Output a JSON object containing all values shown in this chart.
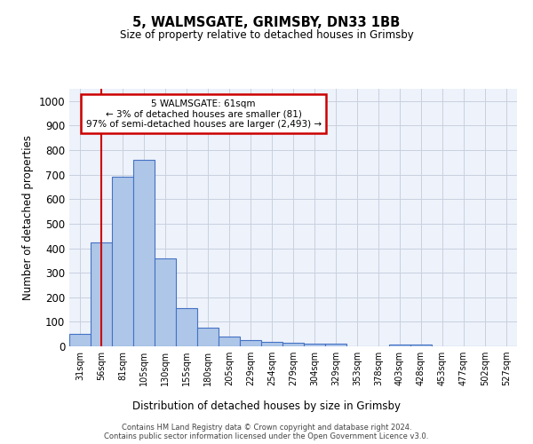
{
  "title": "5, WALMSGATE, GRIMSBY, DN33 1BB",
  "subtitle": "Size of property relative to detached houses in Grimsby",
  "xlabel": "Distribution of detached houses by size in Grimsby",
  "ylabel": "Number of detached properties",
  "categories": [
    "31sqm",
    "56sqm",
    "81sqm",
    "105sqm",
    "130sqm",
    "155sqm",
    "180sqm",
    "205sqm",
    "229sqm",
    "254sqm",
    "279sqm",
    "304sqm",
    "329sqm",
    "353sqm",
    "378sqm",
    "403sqm",
    "428sqm",
    "453sqm",
    "477sqm",
    "502sqm",
    "527sqm"
  ],
  "values": [
    50,
    425,
    690,
    760,
    360,
    155,
    75,
    40,
    27,
    18,
    15,
    10,
    10,
    0,
    0,
    8,
    8,
    0,
    0,
    0,
    0
  ],
  "bar_color": "#aec6e8",
  "bar_edge_color": "#4472c4",
  "vline_x": 1,
  "vline_color": "#cc0000",
  "annotation_text": "5 WALMSGATE: 61sqm\n← 3% of detached houses are smaller (81)\n97% of semi-detached houses are larger (2,493) →",
  "annotation_edge_color": "#cc0000",
  "ylim": [
    0,
    1050
  ],
  "yticks": [
    0,
    100,
    200,
    300,
    400,
    500,
    600,
    700,
    800,
    900,
    1000
  ],
  "footer1": "Contains HM Land Registry data © Crown copyright and database right 2024.",
  "footer2": "Contains public sector information licensed under the Open Government Licence v3.0.",
  "bg_color": "#eef2fa",
  "grid_color": "#c8d0e0"
}
